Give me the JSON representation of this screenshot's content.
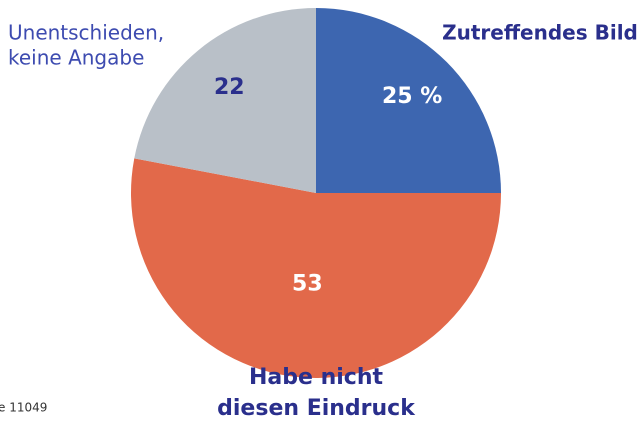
{
  "chart_data": {
    "type": "pie",
    "categories": [
      [
        "Zutreffendes Bild"
      ],
      [
        "Habe nicht",
        "diesen Eindruck"
      ],
      [
        "Unentschieden,",
        "keine Angabe"
      ]
    ],
    "values": [
      25,
      53,
      22
    ],
    "value_labels": [
      "25 %",
      "53",
      "22"
    ],
    "colors": [
      "#3d66b0",
      "#e2694a",
      "#b9c0c8"
    ],
    "source": "e 11049"
  }
}
